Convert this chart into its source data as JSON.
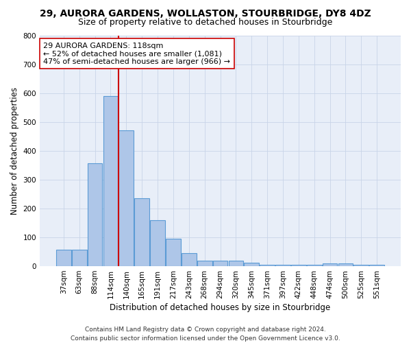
{
  "title": "29, AURORA GARDENS, WOLLASTON, STOURBRIDGE, DY8 4DZ",
  "subtitle": "Size of property relative to detached houses in Stourbridge",
  "xlabel": "Distribution of detached houses by size in Stourbridge",
  "ylabel": "Number of detached properties",
  "categories": [
    "37sqm",
    "63sqm",
    "88sqm",
    "114sqm",
    "140sqm",
    "165sqm",
    "191sqm",
    "217sqm",
    "243sqm",
    "268sqm",
    "294sqm",
    "320sqm",
    "345sqm",
    "371sqm",
    "397sqm",
    "422sqm",
    "448sqm",
    "474sqm",
    "500sqm",
    "525sqm",
    "551sqm"
  ],
  "values": [
    57,
    57,
    356,
    590,
    470,
    235,
    160,
    95,
    46,
    20,
    20,
    20,
    13,
    5,
    5,
    5,
    5,
    10,
    10,
    5,
    5
  ],
  "bar_color": "#aec6e8",
  "bar_edgecolor": "#5b9bd5",
  "bar_linewidth": 0.8,
  "vline_color": "#cc0000",
  "vline_linewidth": 1.5,
  "vline_pos": 3.5,
  "annotation_line1": "29 AURORA GARDENS: 118sqm",
  "annotation_line2": "← 52% of detached houses are smaller (1,081)",
  "annotation_line3": "47% of semi-detached houses are larger (966) →",
  "annotation_box_facecolor": "#ffffff",
  "annotation_box_edgecolor": "#cc0000",
  "ylim": [
    0,
    800
  ],
  "yticks": [
    0,
    100,
    200,
    300,
    400,
    500,
    600,
    700,
    800
  ],
  "grid_color": "#c8d4e8",
  "bg_color": "#e8eef8",
  "footer_line1": "Contains HM Land Registry data © Crown copyright and database right 2024.",
  "footer_line2": "Contains public sector information licensed under the Open Government Licence v3.0.",
  "title_fontsize": 10,
  "subtitle_fontsize": 9,
  "xlabel_fontsize": 8.5,
  "ylabel_fontsize": 8.5,
  "tick_fontsize": 7.5,
  "annotation_fontsize": 8,
  "footer_fontsize": 6.5
}
